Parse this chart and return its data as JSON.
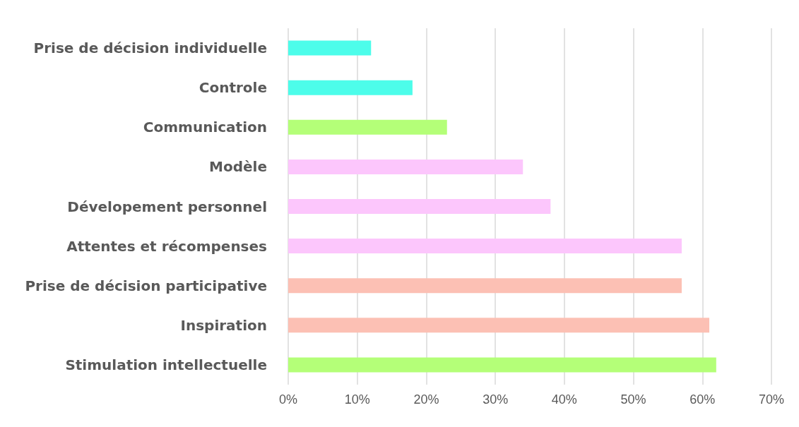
{
  "chart_data": {
    "type": "bar",
    "orientation": "horizontal",
    "categories": [
      "Prise de décision individuelle",
      "Controle",
      "Communication",
      "Modèle",
      "Dévelopement personnel",
      "Attentes et récompenses",
      "Prise de décision participative",
      "Inspiration",
      "Stimulation intellectuelle"
    ],
    "values": [
      12,
      18,
      23,
      34,
      38,
      57,
      57,
      61,
      62
    ],
    "colors": [
      "#4dfdea",
      "#4dfdea",
      "#b4ff78",
      "#fcc6fc",
      "#fcc6fc",
      "#fcc6fc",
      "#fcc0b4",
      "#fcc0b4",
      "#b4ff78"
    ],
    "xlim": [
      0,
      70
    ],
    "xticks": [
      {
        "value": 0,
        "label": "0%"
      },
      {
        "value": 10,
        "label": "10%"
      },
      {
        "value": 20,
        "label": "20%"
      },
      {
        "value": 30,
        "label": "30%"
      },
      {
        "value": 40,
        "label": "40%"
      },
      {
        "value": 50,
        "label": "50%"
      },
      {
        "value": 60,
        "label": "60%"
      },
      {
        "value": 70,
        "label": "70%"
      }
    ],
    "grid": "x"
  }
}
